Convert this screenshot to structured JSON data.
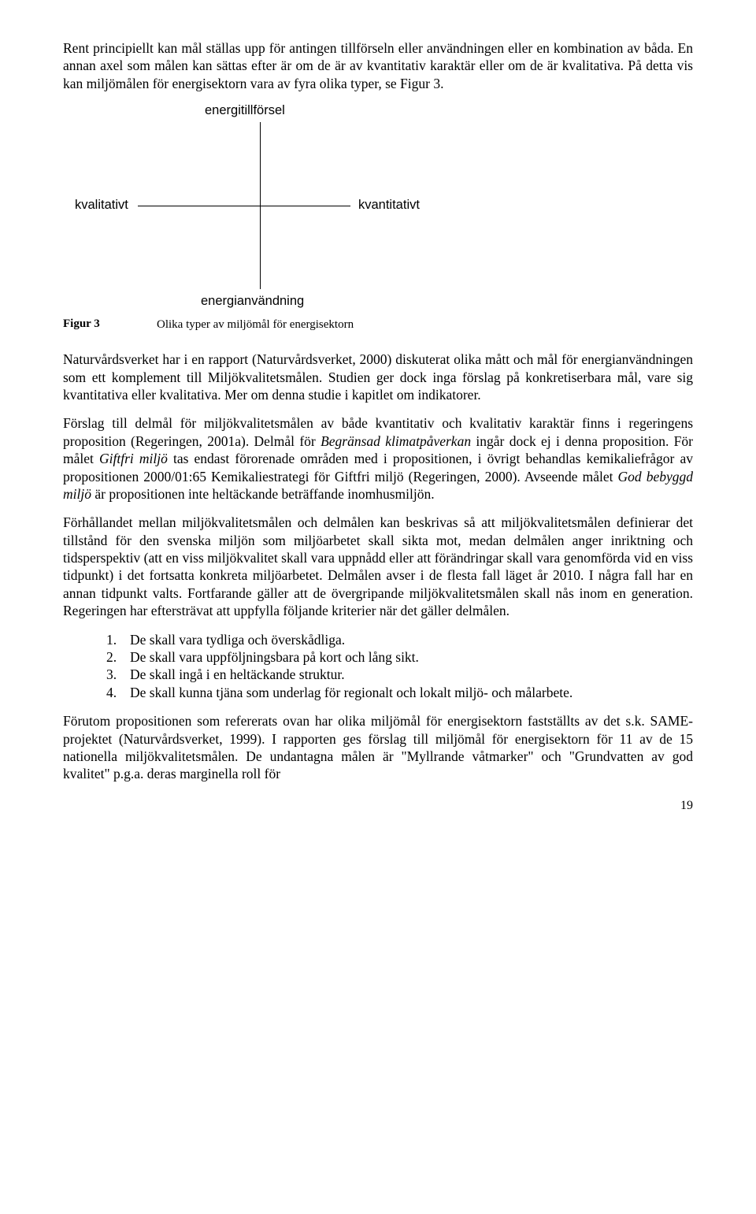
{
  "para1": "Rent principiellt kan mål ställas upp för antingen tillförseln eller användningen eller en kombination av båda. En annan axel som målen kan sättas efter är om de är av kvantitativ karaktär eller om de är kvalitativa. På detta vis kan miljömålen för energisektorn vara av fyra olika typer, se Figur 3.",
  "diagram": {
    "top": "energitillförsel",
    "left": "kvalitativt",
    "right": "kvantitativt",
    "bottom": "energianvändning"
  },
  "figcaption": {
    "label": "Figur 3",
    "text": "Olika typer av miljömål för energisektorn"
  },
  "para2": "Naturvårdsverket har i en rapport (Naturvårdsverket, 2000) diskuterat olika mått och mål för energianvändningen som ett komplement till Miljökvalitetsmålen. Studien ger dock inga förslag på konkretiserbara mål, vare sig kvantitativa eller kvalitativa. Mer om denna studie i kapitlet om indikatorer.",
  "para3_a": "Förslag till delmål för miljökvalitetsmålen av både kvantitativ och kvalitativ karaktär finns i regeringens proposition (Regeringen, 2001a). Delmål för ",
  "para3_i1": "Begränsad klimatpåverkan",
  "para3_b": " ingår dock ej i denna proposition. För målet ",
  "para3_i2": "Giftfri miljö",
  "para3_c": " tas endast förorenade områden med i propositionen, i övrigt behandlas kemikaliefrågor av propositionen 2000/01:65 Kemikaliestrategi för Giftfri miljö (Regeringen, 2000). Avseende målet ",
  "para3_i3": "God bebyggd miljö",
  "para3_d": " är propositionen inte heltäckande beträffande inomhusmiljön.",
  "para4": "Förhållandet mellan miljökvalitetsmålen och delmålen kan beskrivas så att miljökvalitetsmålen definierar det tillstånd för den svenska miljön som miljöarbetet skall sikta mot, medan delmålen anger inriktning och tidsperspektiv (att en viss miljökvalitet skall vara uppnådd eller att förändringar skall vara genomförda vid en viss tidpunkt) i det fortsatta konkreta miljöarbetet. Delmålen avser i de flesta fall läget år 2010. I några fall har en annan tidpunkt valts. Fortfarande gäller att de övergripande miljökvalitetsmålen skall nås inom en generation. Regeringen har eftersträvat att uppfylla följande kriterier när det gäller delmålen.",
  "list": [
    {
      "n": "1.",
      "t": "De skall vara tydliga och överskådliga."
    },
    {
      "n": "2.",
      "t": "De skall vara uppföljningsbara på kort och lång sikt."
    },
    {
      "n": "3.",
      "t": "De skall ingå i en heltäckande struktur."
    },
    {
      "n": "4.",
      "t": "De skall kunna tjäna som underlag för regionalt och lokalt miljö- och målarbete."
    }
  ],
  "para5": "Förutom propositionen som refererats ovan har olika miljömål för energisektorn fastställts av det s.k. SAME-projektet (Naturvårdsverket, 1999). I rapporten ges förslag till miljömål för energisektorn för 11 av de 15 nationella miljökvalitetsmålen. De undantagna målen är \"Myllrande våtmarker\" och \"Grundvatten av god kvalitet\" p.g.a. deras marginella roll för",
  "pagenum": "19"
}
